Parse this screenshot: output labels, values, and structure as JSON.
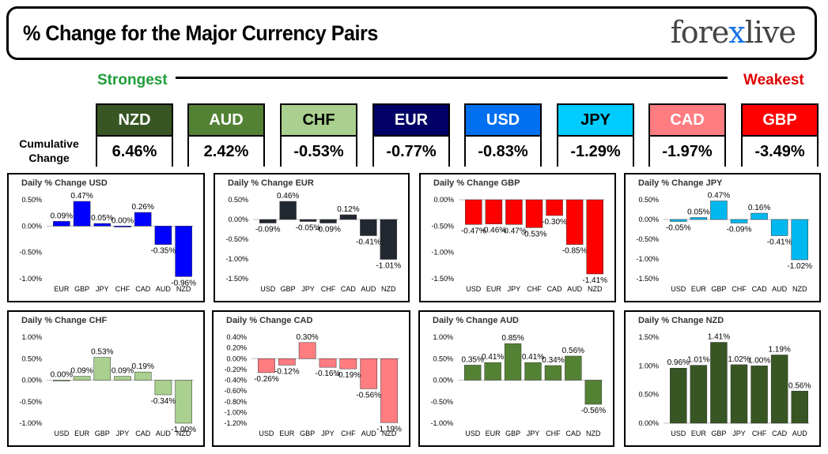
{
  "header": {
    "title": "% Change for the Major Currency Pairs",
    "logo_left": "fore",
    "logo_x": "x",
    "logo_right": "live"
  },
  "strength": {
    "strongest": "Strongest",
    "weakest": "Weakest",
    "cumulative_label": "Cumulative Change"
  },
  "currencies": [
    {
      "name": "NZD",
      "value": "6.46%",
      "color": "#375623",
      "text_color": "#ffffff"
    },
    {
      "name": "AUD",
      "value": "2.42%",
      "color": "#548235",
      "text_color": "#ffffff"
    },
    {
      "name": "CHF",
      "value": "-0.53%",
      "color": "#a9d08e",
      "text_color": "#000000"
    },
    {
      "name": "EUR",
      "value": "-0.77%",
      "color": "#000066",
      "text_color": "#ffffff"
    },
    {
      "name": "USD",
      "value": "-0.83%",
      "color": "#0070f0",
      "text_color": "#ffffff"
    },
    {
      "name": "JPY",
      "value": "-1.29%",
      "color": "#00ccff",
      "text_color": "#000000"
    },
    {
      "name": "CAD",
      "value": "-1.97%",
      "color": "#ff7c80",
      "text_color": "#ffffff"
    },
    {
      "name": "GBP",
      "value": "-3.49%",
      "color": "#ff0000",
      "text_color": "#ffffff"
    }
  ],
  "chart_data": [
    {
      "type": "bar",
      "title": "Daily % Change USD",
      "categories": [
        "EUR",
        "GBP",
        "JPY",
        "CHF",
        "CAD",
        "AUD",
        "NZD"
      ],
      "values": [
        0.09,
        0.47,
        0.05,
        0.0,
        0.26,
        -0.35,
        -0.96
      ],
      "labels": [
        "0.09%",
        "0.47%",
        "0.05%",
        "0.00%",
        "0.26%",
        "-0.35%",
        "-0.96%"
      ],
      "ylim": [
        -1.0,
        0.5
      ],
      "ticks": [
        0.5,
        0.0,
        -0.5,
        -1.0
      ],
      "tick_labels": [
        "0.50%",
        "0.00%",
        "-0.50%",
        "-1.00%"
      ],
      "color": "#0000ff"
    },
    {
      "type": "bar",
      "title": "Daily % Change EUR",
      "categories": [
        "USD",
        "GBP",
        "JPY",
        "CHF",
        "CAD",
        "AUD",
        "NZD"
      ],
      "values": [
        -0.09,
        0.46,
        -0.05,
        -0.09,
        0.12,
        -0.41,
        -1.01
      ],
      "labels": [
        "-0.09%",
        "0.46%",
        "-0.05%",
        "-0.09%",
        "0.12%",
        "-0.41%",
        "-1.01%"
      ],
      "ylim": [
        -1.5,
        0.5
      ],
      "ticks": [
        0.5,
        0.0,
        -0.5,
        -1.0,
        -1.5
      ],
      "tick_labels": [
        "0.50%",
        "0.00%",
        "-0.50%",
        "-1.00%",
        "-1.50%"
      ],
      "color": "#222831"
    },
    {
      "type": "bar",
      "title": "Daily % Change GBP",
      "categories": [
        "USD",
        "EUR",
        "JPY",
        "CHF",
        "CAD",
        "AUD",
        "NZD"
      ],
      "values": [
        -0.47,
        -0.46,
        -0.47,
        -0.53,
        -0.3,
        -0.85,
        -1.41
      ],
      "labels": [
        "-0.47%",
        "-0.46%",
        "-0.47%",
        "-0.53%",
        "-0.30%",
        "-0.85%",
        "-1.41%"
      ],
      "ylim": [
        -1.5,
        0.0
      ],
      "ticks": [
        0.0,
        -0.5,
        -1.0,
        -1.5
      ],
      "tick_labels": [
        "0.00%",
        "-0.50%",
        "-1.00%",
        "-1.50%"
      ],
      "color": "#ff0000"
    },
    {
      "type": "bar",
      "title": "Daily % Change JPY",
      "categories": [
        "USD",
        "EUR",
        "GBP",
        "CHF",
        "CAD",
        "AUD",
        "NZD"
      ],
      "values": [
        -0.05,
        0.05,
        0.47,
        -0.09,
        0.16,
        -0.41,
        -1.02
      ],
      "labels": [
        "-0.05%",
        "0.05%",
        "0.47%",
        "-0.09%",
        "0.16%",
        "-0.41%",
        "-1.02%"
      ],
      "ylim": [
        -1.5,
        0.5
      ],
      "ticks": [
        0.5,
        0.0,
        -0.5,
        -1.0,
        -1.5
      ],
      "tick_labels": [
        "0.50%",
        "0.00%",
        "-0.50%",
        "-1.00%",
        "-1.50%"
      ],
      "color": "#00b8f0"
    },
    {
      "type": "bar",
      "title": "Daily % Change CHF",
      "categories": [
        "USD",
        "EUR",
        "GBP",
        "JPY",
        "CAD",
        "AUD",
        "NZD"
      ],
      "values": [
        0.0,
        0.09,
        0.53,
        0.09,
        0.19,
        -0.34,
        -1.0
      ],
      "labels": [
        "0.00%",
        "0.09%",
        "0.53%",
        "0.09%",
        "0.19%",
        "-0.34%",
        "-1.00%"
      ],
      "ylim": [
        -1.0,
        1.0
      ],
      "ticks": [
        1.0,
        0.5,
        0.0,
        -0.5,
        -1.0
      ],
      "tick_labels": [
        "1.00%",
        "0.50%",
        "0.00%",
        "-0.50%",
        "-1.00%"
      ],
      "color": "#a9d08e"
    },
    {
      "type": "bar",
      "title": "Daily % Change CAD",
      "categories": [
        "USD",
        "EUR",
        "GBP",
        "JPY",
        "CHF",
        "AUD",
        "NZD"
      ],
      "values": [
        -0.26,
        -0.12,
        0.3,
        -0.16,
        -0.19,
        -0.56,
        -1.19
      ],
      "labels": [
        "-0.26%",
        "-0.12%",
        "0.30%",
        "-0.16%",
        "-0.19%",
        "-0.56%",
        "-1.19%"
      ],
      "ylim": [
        -1.2,
        0.4
      ],
      "ticks": [
        0.4,
        0.2,
        0.0,
        -0.2,
        -0.4,
        -0.6,
        -0.8,
        -1.0,
        -1.2
      ],
      "tick_labels": [
        "0.40%",
        "0.20%",
        "0.00%",
        "-0.20%",
        "-0.40%",
        "-0.60%",
        "-0.80%",
        "-1.00%",
        "-1.20%"
      ],
      "color": "#ff7c80"
    },
    {
      "type": "bar",
      "title": "Daily % Change AUD",
      "categories": [
        "USD",
        "EUR",
        "GBP",
        "JPY",
        "CHF",
        "CAD",
        "NZD"
      ],
      "values": [
        0.35,
        0.41,
        0.85,
        0.41,
        0.34,
        0.56,
        -0.56
      ],
      "labels": [
        "0.35%",
        "0.41%",
        "0.85%",
        "0.41%",
        "0.34%",
        "0.56%",
        "-0.56%"
      ],
      "ylim": [
        -1.0,
        1.0
      ],
      "ticks": [
        1.0,
        0.5,
        0.0,
        -0.5,
        -1.0
      ],
      "tick_labels": [
        "1.00%",
        "0.50%",
        "0.00%",
        "-0.50%",
        "-1.00%"
      ],
      "color": "#548235"
    },
    {
      "type": "bar",
      "title": "Daily % Change NZD",
      "categories": [
        "USD",
        "EUR",
        "GBP",
        "JPY",
        "CHF",
        "CAD",
        "AUD"
      ],
      "values": [
        0.96,
        1.01,
        1.41,
        1.02,
        1.0,
        1.19,
        0.56
      ],
      "labels": [
        "0.96%",
        "1.01%",
        "1.41%",
        "1.02%",
        "1.00%",
        "1.19%",
        "0.56%"
      ],
      "ylim": [
        0.0,
        1.5
      ],
      "ticks": [
        1.5,
        1.0,
        0.5,
        0.0
      ],
      "tick_labels": [
        "1.50%",
        "1.00%",
        "0.50%",
        "0.00%"
      ],
      "color": "#375623"
    }
  ]
}
